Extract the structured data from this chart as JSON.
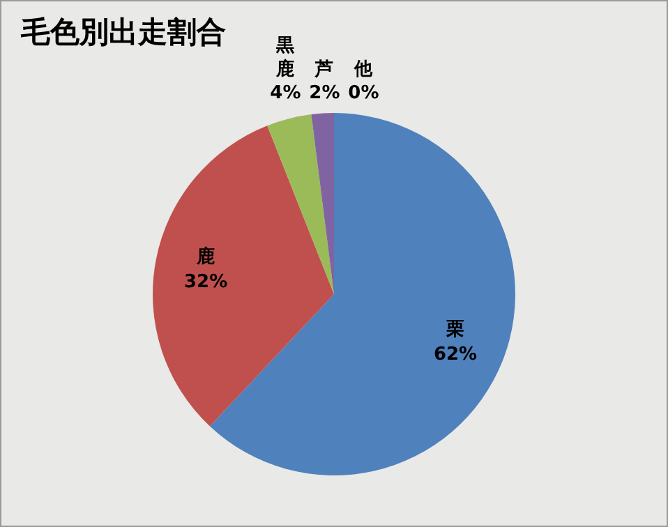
{
  "chart_data": {
    "type": "pie",
    "title": "毛色別出走割合",
    "categories": [
      "栗",
      "鹿",
      "黒鹿",
      "芦",
      "他"
    ],
    "values": [
      62,
      32,
      4,
      2,
      0
    ],
    "value_labels": [
      "62%",
      "32%",
      "4%",
      "2%",
      "0%"
    ],
    "colors": [
      "#4f81bd",
      "#c0504d",
      "#9bbb59",
      "#8064a2",
      "#4bacc6"
    ],
    "legend": false
  }
}
